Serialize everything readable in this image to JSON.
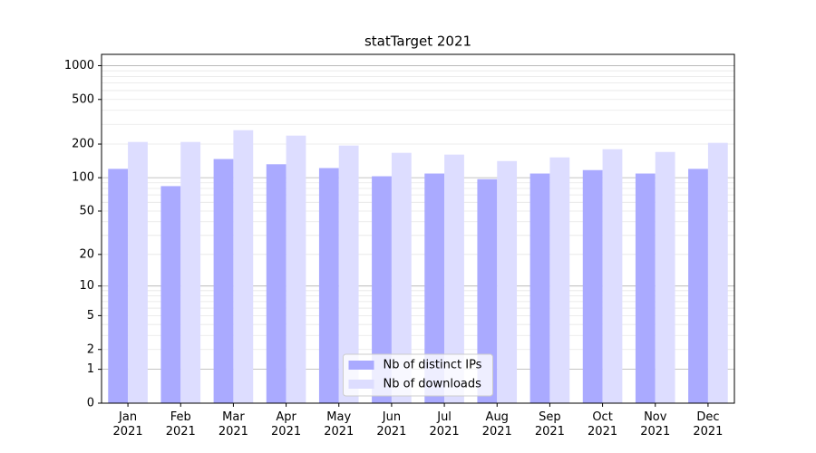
{
  "chart_data": {
    "type": "bar",
    "title": "statTarget 2021",
    "scale": "log1p",
    "categories": [
      "Jan\n2021",
      "Feb\n2021",
      "Mar\n2021",
      "Apr\n2021",
      "May\n2021",
      "Jun\n2021",
      "Jul\n2021",
      "Aug\n2021",
      "Sep\n2021",
      "Oct\n2021",
      "Nov\n2021",
      "Dec\n2021"
    ],
    "series": [
      {
        "name": "Nb of distinct IPs",
        "color": "#aaaaff",
        "values": [
          120,
          84,
          147,
          132,
          122,
          103,
          109,
          97,
          109,
          117,
          109,
          120
        ]
      },
      {
        "name": "Nb of downloads",
        "color": "#ddddff",
        "values": [
          209,
          209,
          266,
          238,
          194,
          167,
          161,
          141,
          152,
          180,
          170,
          205
        ]
      }
    ],
    "ylim": [
      0,
      1260
    ],
    "yticks": [
      0,
      1,
      2,
      5,
      10,
      20,
      50,
      100,
      200,
      500,
      1000
    ],
    "major_grid": [
      1,
      10,
      100,
      1000
    ],
    "minor_grid": [
      2,
      3,
      4,
      5,
      6,
      7,
      8,
      9,
      20,
      30,
      40,
      50,
      60,
      70,
      80,
      90,
      200,
      300,
      400,
      500,
      600,
      700,
      800,
      900
    ],
    "legend": "lower center"
  }
}
